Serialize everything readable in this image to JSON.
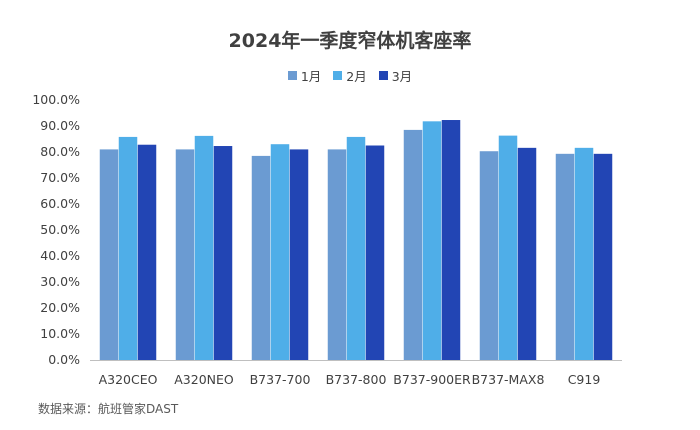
{
  "chart_data": {
    "type": "bar",
    "title": "2024年一季度窄体机客座率",
    "categories": [
      "A320CEO",
      "A320NEO",
      "B737-700",
      "B737-800",
      "B737-900ER",
      "B737-MAX8",
      "C919"
    ],
    "series": [
      {
        "name": "1月",
        "color": "#6b9bd2",
        "values": [
          81.0,
          81.0,
          78.5,
          81.0,
          88.5,
          80.3,
          79.3
        ]
      },
      {
        "name": "2月",
        "color": "#4faee8",
        "values": [
          85.8,
          86.2,
          83.0,
          85.8,
          91.8,
          86.3,
          81.6
        ]
      },
      {
        "name": "3月",
        "color": "#2245b4",
        "values": [
          82.8,
          82.3,
          81.0,
          82.5,
          92.3,
          81.6,
          79.3
        ]
      }
    ],
    "ylim": [
      0,
      100
    ],
    "yticks": [
      "0.0%",
      "10.0%",
      "20.0%",
      "30.0%",
      "40.0%",
      "50.0%",
      "60.0%",
      "70.0%",
      "80.0%",
      "90.0%",
      "100.0%"
    ],
    "ytick_values": [
      0,
      10,
      20,
      30,
      40,
      50,
      60,
      70,
      80,
      90,
      100
    ],
    "legend_position": "top-center",
    "grid": false
  },
  "source_note": "数据来源：航班管家DAST"
}
